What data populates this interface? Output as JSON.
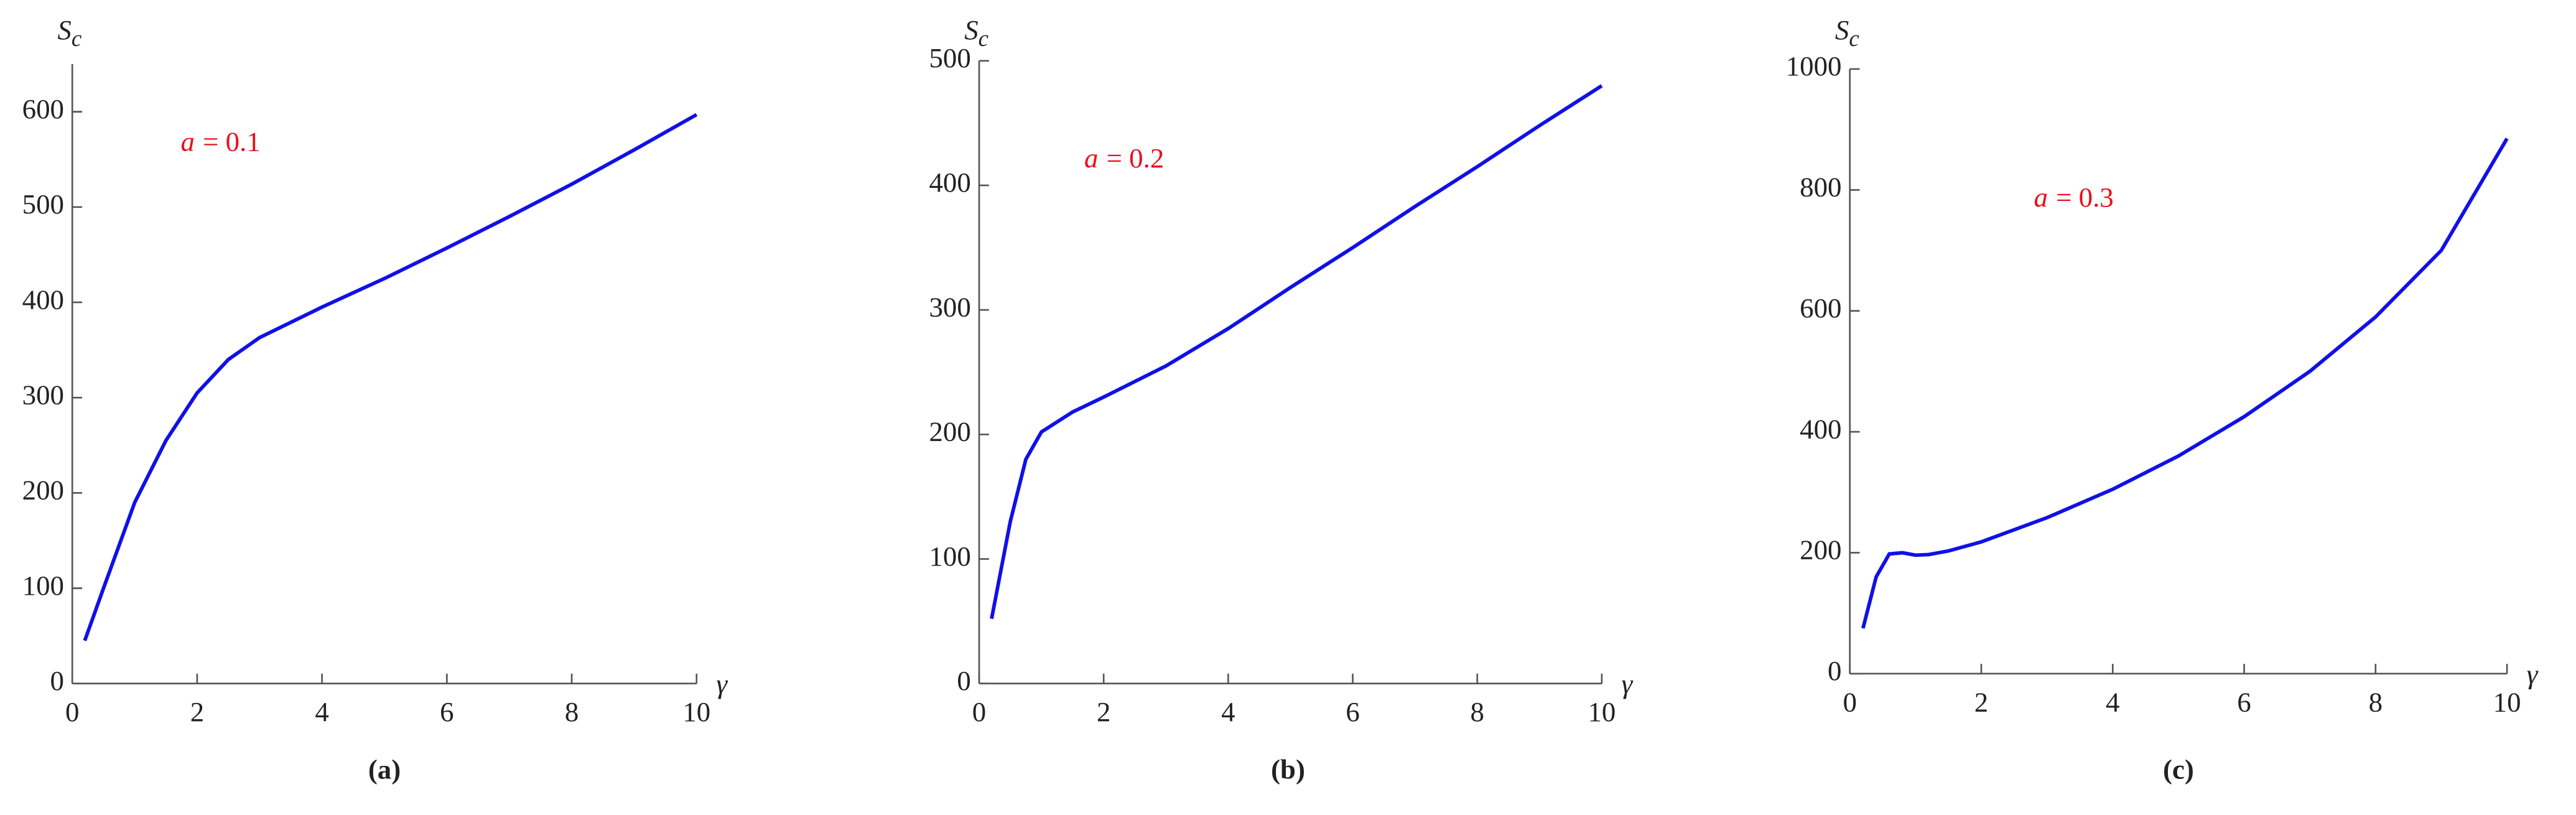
{
  "chart_data": [
    {
      "type": "line",
      "x_label": "γ",
      "y_label": {
        "symbol": "S",
        "subscript": "c"
      },
      "annotation": {
        "variable": "a",
        "text": "= 0.1"
      },
      "panel_label": "(a)",
      "xlim": [
        0,
        10
      ],
      "ylim": [
        0,
        650
      ],
      "xticks": [
        0,
        2,
        4,
        6,
        8,
        10
      ],
      "yticks": [
        0,
        100,
        200,
        300,
        400,
        500,
        600
      ],
      "x": [
        0.2,
        0.5,
        1,
        1.5,
        2,
        2.5,
        3,
        4,
        5,
        6,
        7,
        8,
        9,
        10
      ],
      "series": [
        {
          "color": "#1010e8",
          "values": [
            45,
            100,
            190,
            255,
            305,
            340,
            363,
            395,
            425,
            457,
            490,
            524,
            560,
            597
          ]
        }
      ]
    },
    {
      "type": "line",
      "x_label": "γ",
      "y_label": {
        "symbol": "S",
        "subscript": "c"
      },
      "annotation": {
        "variable": "a",
        "text": "= 0.2"
      },
      "panel_label": "(b)",
      "xlim": [
        0,
        10
      ],
      "ylim": [
        0,
        500
      ],
      "xticks": [
        0,
        2,
        4,
        6,
        8,
        10
      ],
      "yticks": [
        0,
        100,
        200,
        300,
        400,
        500
      ],
      "x": [
        0.2,
        0.5,
        0.75,
        1,
        1.5,
        2,
        3,
        4,
        5,
        6,
        7,
        8,
        9,
        10
      ],
      "series": [
        {
          "color": "#1010e8",
          "values": [
            52,
            130,
            180,
            202,
            218,
            230,
            255,
            285,
            318,
            350,
            383,
            415,
            448,
            480
          ]
        }
      ]
    },
    {
      "type": "line",
      "x_label": "γ",
      "y_label": {
        "symbol": "S",
        "subscript": "c"
      },
      "annotation": {
        "variable": "a",
        "text": "= 0.3"
      },
      "panel_label": "(c)",
      "xlim": [
        0,
        10
      ],
      "ylim": [
        0,
        1000
      ],
      "xticks": [
        0,
        2,
        4,
        6,
        8,
        10
      ],
      "yticks": [
        0,
        200,
        400,
        600,
        800,
        1000
      ],
      "x": [
        0.2,
        0.4,
        0.6,
        0.8,
        1,
        1.2,
        1.5,
        2,
        3,
        4,
        5,
        6,
        7,
        8,
        9,
        10
      ],
      "series": [
        {
          "color": "#1010e8",
          "values": [
            75,
            160,
            198,
            200,
            196,
            197,
            203,
            218,
            258,
            305,
            360,
            425,
            500,
            590,
            700,
            885
          ]
        }
      ]
    }
  ]
}
